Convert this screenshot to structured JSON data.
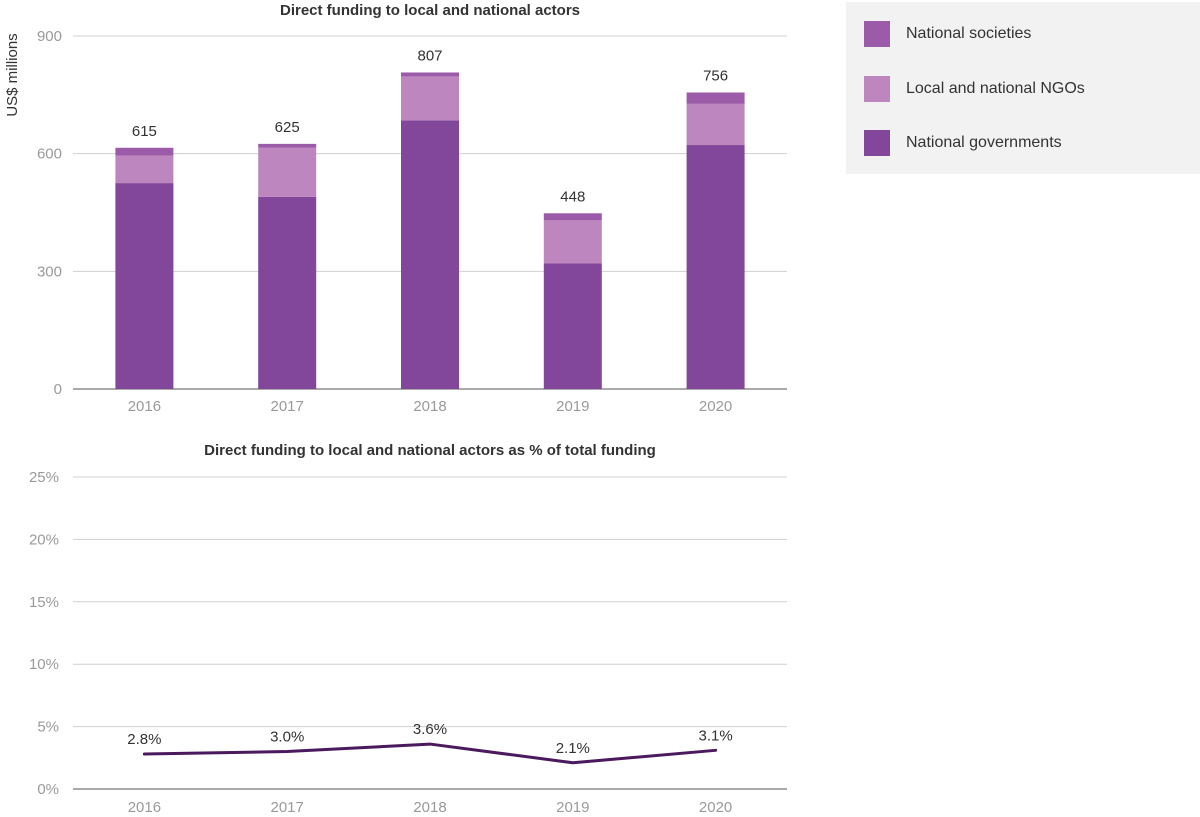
{
  "chart_data": [
    {
      "type": "bar",
      "title": "Direct funding to local and national actors",
      "ylabel": "US$ millions",
      "xlabel": "",
      "categories": [
        "2016",
        "2017",
        "2018",
        "2019",
        "2020"
      ],
      "ylim": [
        0,
        900
      ],
      "yticks": [
        0,
        300,
        600,
        900
      ],
      "ytick_labels": [
        "0",
        "300",
        "600",
        "900"
      ],
      "stacked": true,
      "series": [
        {
          "name": "National governments",
          "color": "#82479a",
          "values": [
            525,
            490,
            685,
            320,
            622
          ]
        },
        {
          "name": "Local and national NGOs",
          "color": "#bd86bf",
          "values": [
            70,
            125,
            112,
            110,
            105
          ]
        },
        {
          "name": "National societies",
          "color": "#9c5ba8",
          "values": [
            20,
            10,
            10,
            18,
            29
          ]
        }
      ],
      "totals": [
        615,
        625,
        807,
        448,
        756
      ],
      "total_labels": [
        "615",
        "625",
        "807",
        "448",
        "756"
      ],
      "grid": "horizontal",
      "legend_position": "right"
    },
    {
      "type": "line",
      "title": "Direct funding to local and national actors as % of total funding",
      "xlabel": "",
      "ylabel": "",
      "categories": [
        "2016",
        "2017",
        "2018",
        "2019",
        "2020"
      ],
      "ylim": [
        0,
        25
      ],
      "yticks": [
        0,
        5,
        10,
        15,
        20,
        25
      ],
      "ytick_labels": [
        "0%",
        "5%",
        "10%",
        "15%",
        "20%",
        "25%"
      ],
      "series": [
        {
          "color": "#4b1a5e",
          "values": [
            2.8,
            3.0,
            3.6,
            2.1,
            3.1
          ],
          "labels": [
            "2.8%",
            "3.0%",
            "3.6%",
            "2.1%",
            "3.1%"
          ]
        }
      ],
      "grid": "horizontal"
    }
  ],
  "legend": {
    "items": [
      {
        "label": "National societies",
        "color": "#9c5ba8"
      },
      {
        "label": "Local and national NGOs",
        "color": "#bd86bf"
      },
      {
        "label": "National governments",
        "color": "#82479a"
      }
    ]
  }
}
